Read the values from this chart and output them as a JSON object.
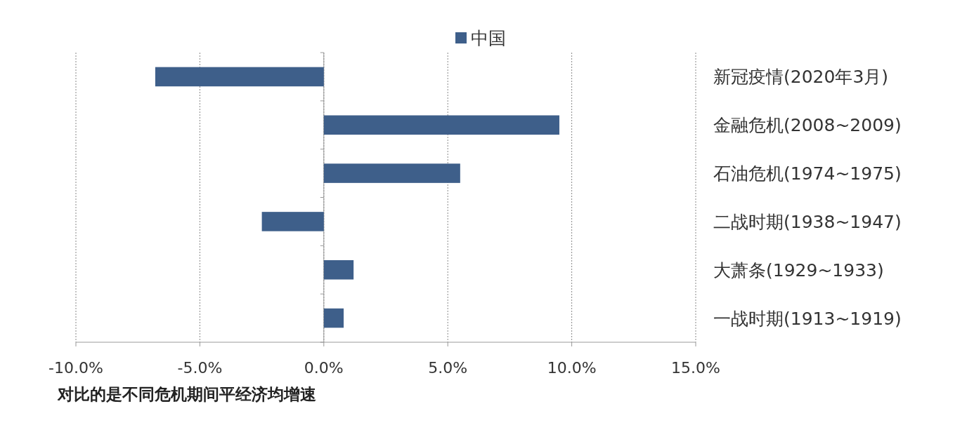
{
  "chart_data": {
    "type": "bar",
    "orientation": "horizontal",
    "categories": [
      "新冠疫情(2020年3月)",
      "金融危机(2008~2009)",
      "石油危机(1974~1975)",
      "二战时期(1938~1947)",
      "大萧条(1929~1933)",
      "一战时期(1913~1919)"
    ],
    "series": [
      {
        "name": "中国",
        "color": "#3e5f8a",
        "values": [
          -6.8,
          9.5,
          5.5,
          -2.5,
          1.2,
          0.8
        ]
      }
    ],
    "xlim": [
      -10,
      15
    ],
    "xticks": [
      {
        "value": -10,
        "label": "-10.0%"
      },
      {
        "value": -5,
        "label": "-5.0%"
      },
      {
        "value": 0,
        "label": "0.0%"
      },
      {
        "value": 5,
        "label": "5.0%"
      },
      {
        "value": 10,
        "label": "10.0%"
      },
      {
        "value": 15,
        "label": "15.0%"
      }
    ],
    "grid": "x",
    "legend": "top",
    "annotations": [
      "对比的是不同危机期间平经济均增速"
    ]
  }
}
